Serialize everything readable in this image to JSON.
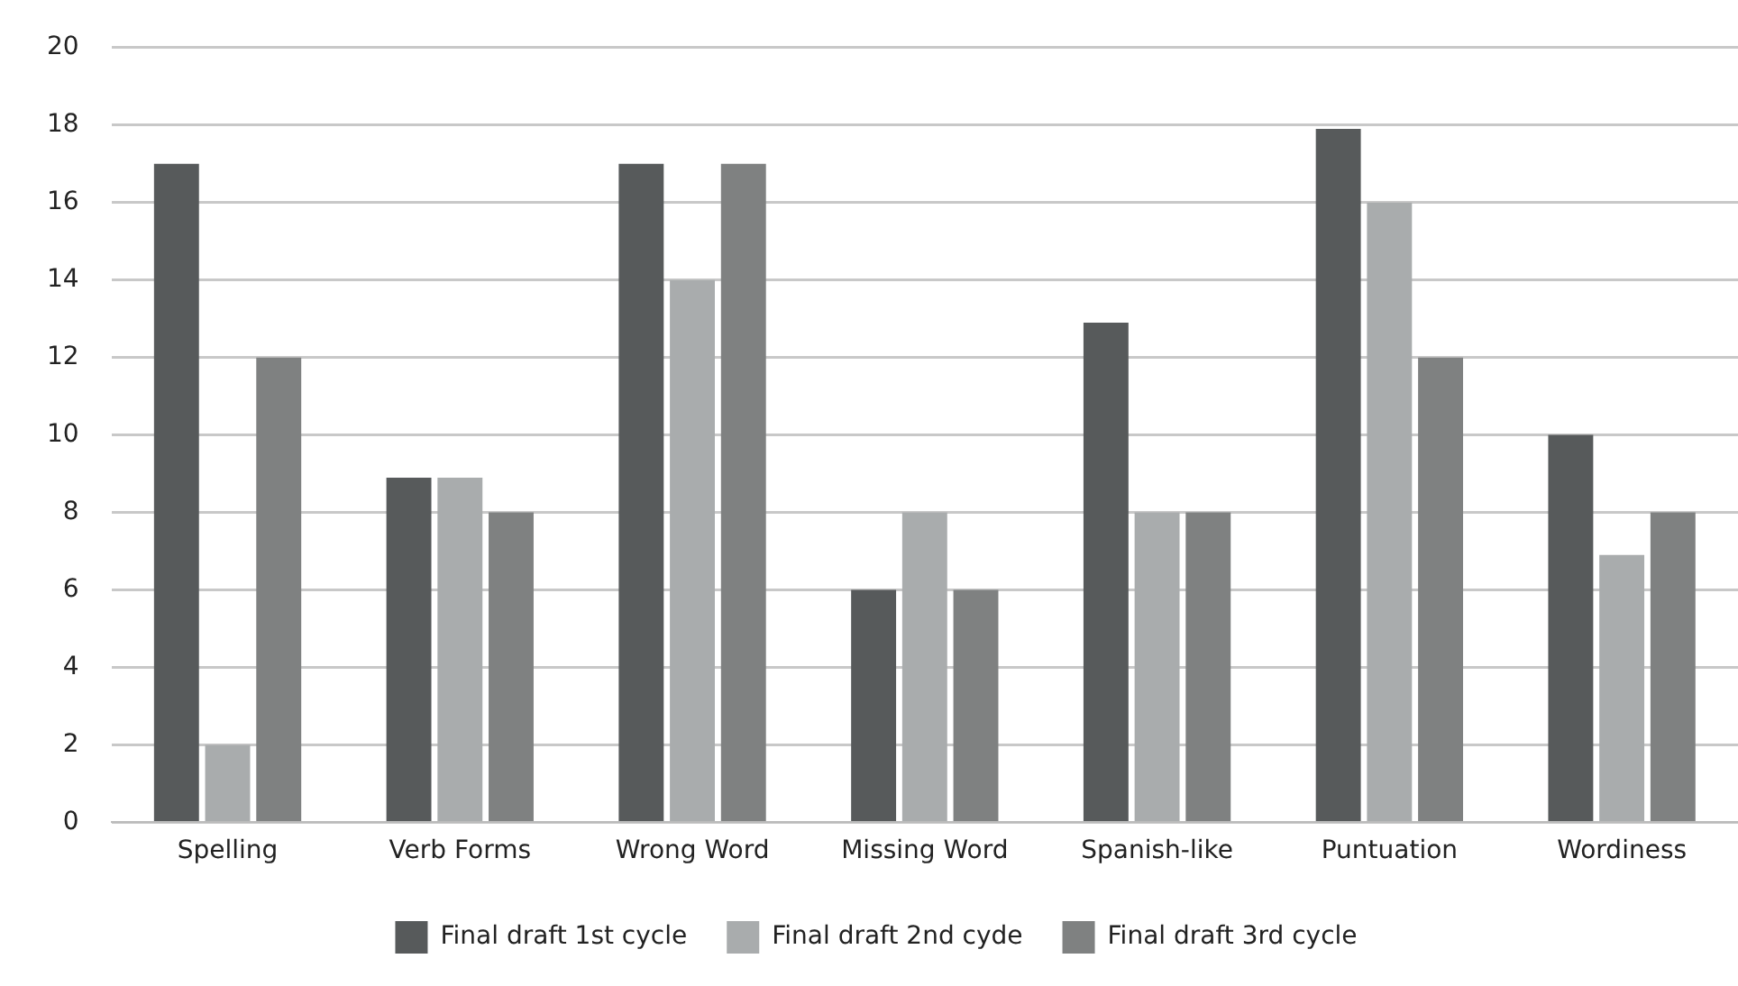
{
  "chart_data": {
    "type": "bar",
    "categories": [
      "Spelling",
      "Verb Forms",
      "Wrong Word",
      "Missing Word",
      "Spanish-like",
      "Puntuation",
      "Wordiness"
    ],
    "series": [
      {
        "name": "Final draft 1st cycle",
        "color": "#575a5b",
        "values": [
          17,
          8.9,
          17,
          6,
          12.9,
          17.9,
          10
        ]
      },
      {
        "name": "Final draft 2nd cyde",
        "color": "#a9acad",
        "values": [
          2,
          8.9,
          14,
          8,
          8,
          16,
          6.9
        ]
      },
      {
        "name": "Final draft 3rd cycle",
        "color": "#7f8181",
        "values": [
          12,
          8,
          17,
          6,
          8,
          12,
          8
        ]
      }
    ],
    "ylim": [
      0,
      20
    ],
    "yticks": [
      0,
      2,
      4,
      6,
      8,
      10,
      12,
      14,
      16,
      18,
      20
    ],
    "grid": "y",
    "legend": "bottom"
  }
}
